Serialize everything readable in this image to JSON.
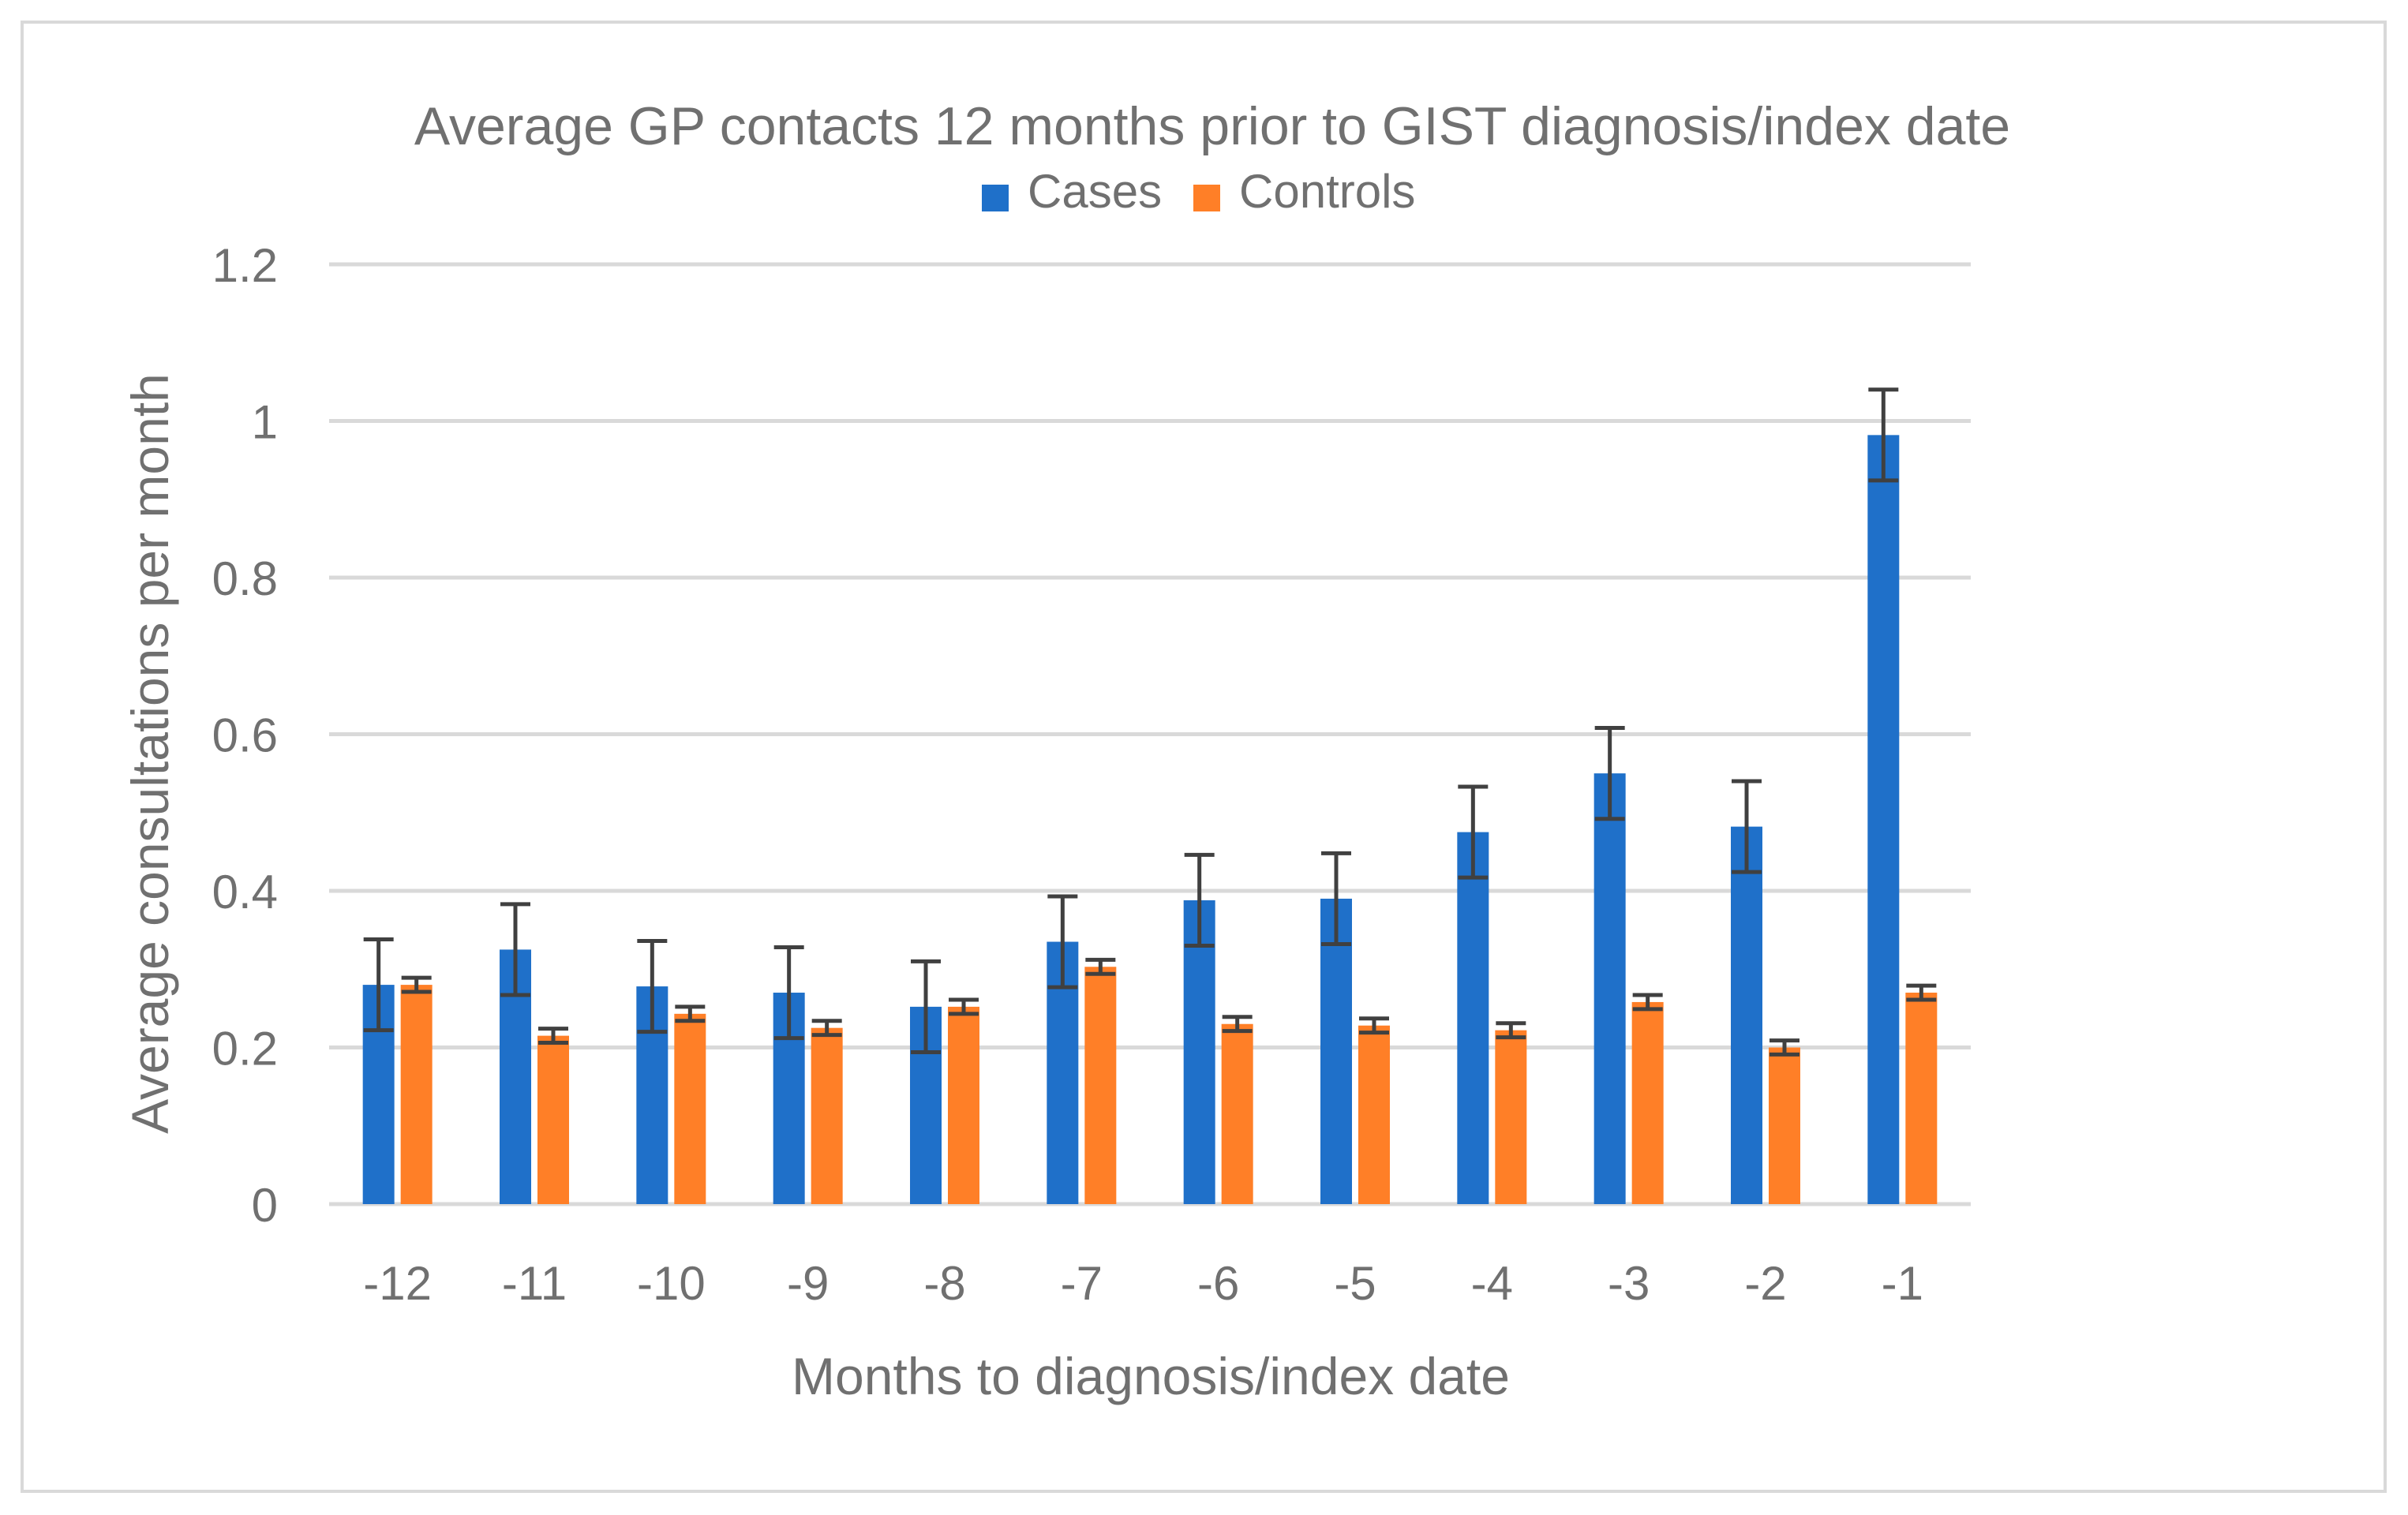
{
  "chart_data": {
    "type": "bar",
    "title": "Average GP contacts 12 months prior to GIST diagnosis/index date",
    "xlabel": "Months to diagnosis/index date",
    "ylabel": "Average consultations per month",
    "categories": [
      "-12",
      "-11",
      "-10",
      "-9",
      "-8",
      "-7",
      "-6",
      "-5",
      "-4",
      "-3",
      "-2",
      "-1"
    ],
    "ylim": [
      0,
      1.2
    ],
    "yticks": [
      0,
      0.2,
      0.4,
      0.6,
      0.8,
      1,
      1.2
    ],
    "ytick_labels": [
      "0",
      "0.2",
      "0.4",
      "0.6",
      "0.8",
      "1",
      "1.2"
    ],
    "grid": true,
    "legend_position": "top-center",
    "series": [
      {
        "name": "Cases",
        "color": "#1f70c9",
        "values": [
          0.28,
          0.325,
          0.278,
          0.27,
          0.252,
          0.335,
          0.388,
          0.39,
          0.475,
          0.55,
          0.482,
          0.982
        ],
        "error_plus": [
          0.058,
          0.058,
          0.058,
          0.058,
          0.058,
          0.058,
          0.058,
          0.058,
          0.058,
          0.058,
          0.058,
          0.058
        ],
        "error_minus": [
          0.058,
          0.058,
          0.058,
          0.058,
          0.058,
          0.058,
          0.058,
          0.058,
          0.058,
          0.058,
          0.058,
          0.058
        ]
      },
      {
        "name": "Controls",
        "color": "#ff7f27",
        "values": [
          0.28,
          0.215,
          0.243,
          0.225,
          0.252,
          0.303,
          0.23,
          0.228,
          0.222,
          0.258,
          0.2,
          0.27
        ],
        "error_plus": [
          0.009,
          0.009,
          0.009,
          0.009,
          0.009,
          0.009,
          0.009,
          0.009,
          0.009,
          0.009,
          0.009,
          0.009
        ],
        "error_minus": [
          0.009,
          0.009,
          0.009,
          0.009,
          0.009,
          0.009,
          0.009,
          0.009,
          0.009,
          0.009,
          0.009,
          0.009
        ]
      }
    ]
  }
}
